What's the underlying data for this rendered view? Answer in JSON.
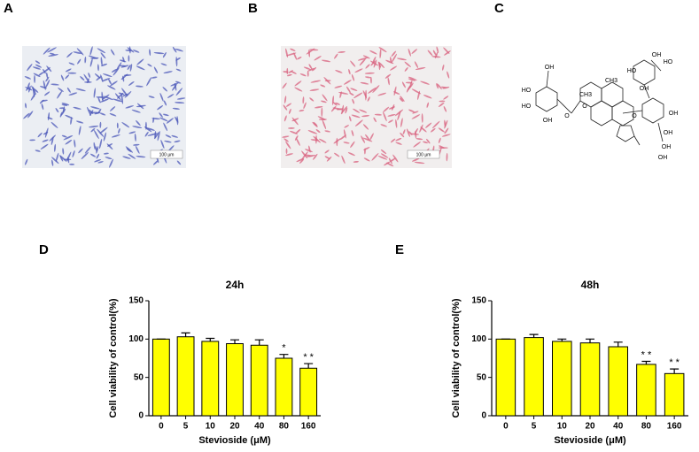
{
  "panels": {
    "labels": [
      "A",
      "B",
      "C",
      "D",
      "E"
    ],
    "scale_bar_a": "100 μm",
    "scale_bar_b": "100 μm",
    "structure_labels": [
      "OH",
      "HO",
      "HO",
      "OH",
      "O",
      "O",
      "CH3",
      "CH3",
      "O",
      "HO",
      "OH",
      "OH",
      "HO",
      "OH",
      "OH",
      "OH",
      "OH"
    ]
  },
  "chart_data": [
    {
      "type": "bar",
      "title": "24h",
      "x_label": "Stevioside (μM)",
      "y_label": "Cell  viability of control(%)",
      "categories": [
        "0",
        "5",
        "10",
        "20",
        "40",
        "80",
        "160"
      ],
      "values": [
        100,
        103,
        97,
        94,
        92,
        75,
        62
      ],
      "errors": [
        0,
        5,
        4,
        5,
        7,
        5,
        6
      ],
      "significance": [
        null,
        null,
        null,
        null,
        null,
        "*",
        "* *"
      ],
      "color": "#ffff00",
      "ylim": [
        0,
        150
      ],
      "yticks": [
        0,
        50,
        100,
        150
      ]
    },
    {
      "type": "bar",
      "title": "48h",
      "x_label": "Stevioside (μM)",
      "y_label": "Cell  viability of control(%)",
      "categories": [
        "0",
        "5",
        "10",
        "20",
        "40",
        "80",
        "160"
      ],
      "values": [
        100,
        102,
        97,
        95,
        90,
        67,
        55
      ],
      "errors": [
        0,
        4,
        3,
        5,
        6,
        4,
        6
      ],
      "significance": [
        null,
        null,
        null,
        null,
        null,
        "* *",
        "* *"
      ],
      "color": "#ffff00",
      "ylim": [
        0,
        150
      ],
      "yticks": [
        0,
        50,
        100,
        150
      ]
    }
  ]
}
